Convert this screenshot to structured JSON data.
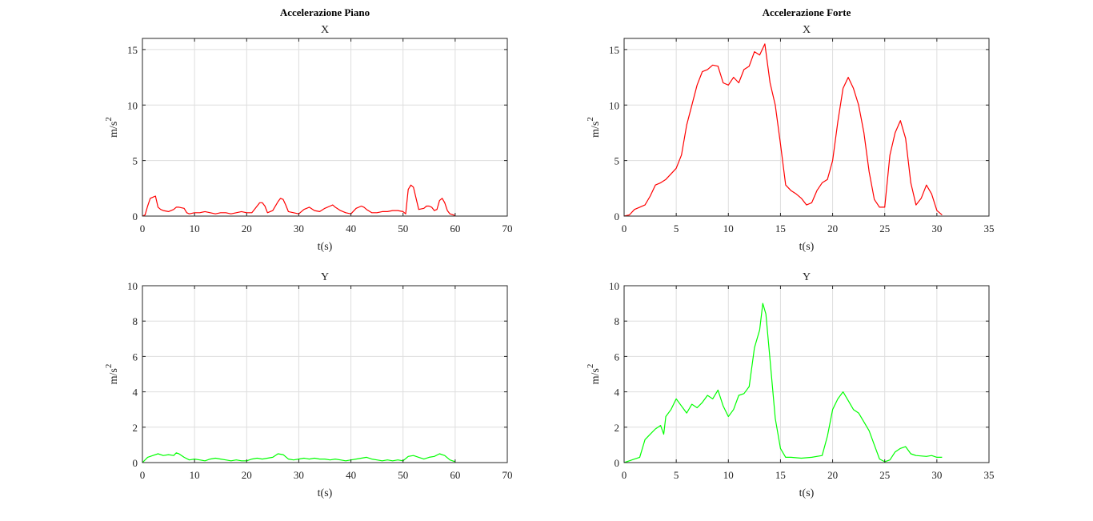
{
  "figure": {
    "left_title": "Accelerazione Piano",
    "right_title": "Accelerazione Forte"
  },
  "chart_data": [
    {
      "type": "line",
      "title": "X",
      "xlabel": "t(s)",
      "ylabel": "m/s^2",
      "xlim": [
        0,
        70
      ],
      "ylim": [
        0,
        16
      ],
      "xticks": [
        0,
        10,
        20,
        30,
        40,
        50,
        60,
        70
      ],
      "yticks": [
        0,
        5,
        10,
        15
      ],
      "grid": true,
      "series": [
        {
          "color": "#ff0000",
          "x": [
            0,
            0.5,
            1,
            1.5,
            2,
            2.5,
            3,
            3.5,
            4,
            5,
            6,
            6.5,
            7,
            8,
            8.5,
            9,
            10,
            11,
            12,
            13,
            14,
            15,
            16,
            17,
            18,
            19,
            20,
            21,
            22,
            22.5,
            23,
            23.5,
            24,
            25,
            26,
            26.5,
            27,
            27.5,
            28,
            29,
            30,
            31,
            32,
            33,
            34,
            35,
            36,
            36.5,
            37,
            38,
            39,
            40,
            41,
            42,
            42.5,
            43,
            44,
            45,
            46,
            47,
            48,
            49,
            50,
            50.5,
            51,
            51.5,
            52,
            52.5,
            53,
            54,
            54.5,
            55,
            55.5,
            56,
            56.5,
            57,
            57.5,
            58,
            58.5,
            59,
            60
          ],
          "y": [
            0,
            0.1,
            0.9,
            1.6,
            1.7,
            1.8,
            0.8,
            0.6,
            0.5,
            0.4,
            0.6,
            0.8,
            0.8,
            0.7,
            0.3,
            0.2,
            0.3,
            0.3,
            0.4,
            0.3,
            0.2,
            0.3,
            0.3,
            0.2,
            0.3,
            0.4,
            0.3,
            0.3,
            0.9,
            1.2,
            1.2,
            0.9,
            0.3,
            0.5,
            1.3,
            1.6,
            1.5,
            1.0,
            0.4,
            0.3,
            0.2,
            0.6,
            0.8,
            0.5,
            0.4,
            0.7,
            0.9,
            1.0,
            0.8,
            0.5,
            0.3,
            0.2,
            0.7,
            0.9,
            0.8,
            0.6,
            0.3,
            0.3,
            0.4,
            0.4,
            0.5,
            0.5,
            0.4,
            0.2,
            2.4,
            2.8,
            2.6,
            1.6,
            0.6,
            0.7,
            0.9,
            0.9,
            0.8,
            0.5,
            0.6,
            1.4,
            1.6,
            1.2,
            0.5,
            0.2,
            0.05
          ]
        }
      ]
    },
    {
      "type": "line",
      "title": "X",
      "xlabel": "t(s)",
      "ylabel": "m/s^2",
      "xlim": [
        0,
        35
      ],
      "ylim": [
        0,
        16
      ],
      "xticks": [
        0,
        5,
        10,
        15,
        20,
        25,
        30,
        35
      ],
      "yticks": [
        0,
        5,
        10,
        15
      ],
      "grid": true,
      "series": [
        {
          "color": "#ff0000",
          "x": [
            0,
            0.5,
            1,
            1.5,
            2,
            2.5,
            3,
            3.5,
            4,
            4.5,
            5,
            5.5,
            6,
            6.5,
            7,
            7.5,
            8,
            8.5,
            9,
            9.5,
            10,
            10.5,
            11,
            11.5,
            12,
            12.5,
            13,
            13.5,
            14,
            14.5,
            15,
            15.5,
            16,
            16.5,
            17,
            17.5,
            18,
            18.5,
            19,
            19.5,
            20,
            20.5,
            21,
            21.5,
            22,
            22.5,
            23,
            23.5,
            24,
            24.5,
            25,
            25.5,
            26,
            26.5,
            27,
            27.5,
            28,
            28.5,
            29,
            29.5,
            30,
            30.5
          ],
          "y": [
            0,
            0.1,
            0.6,
            0.8,
            1.0,
            1.8,
            2.8,
            3.0,
            3.3,
            3.8,
            4.3,
            5.5,
            8.2,
            10.0,
            11.8,
            13.0,
            13.2,
            13.6,
            13.5,
            12.0,
            11.8,
            12.5,
            12.0,
            13.2,
            13.5,
            14.8,
            14.5,
            15.5,
            12.0,
            10.0,
            6.5,
            2.8,
            2.3,
            2.0,
            1.6,
            1.0,
            1.2,
            2.3,
            3.0,
            3.3,
            5.0,
            8.5,
            11.5,
            12.5,
            11.5,
            10.0,
            7.5,
            4.0,
            1.5,
            0.8,
            0.8,
            5.5,
            7.5,
            8.6,
            7.0,
            3.0,
            1.0,
            1.6,
            2.8,
            2.0,
            0.5,
            0.1
          ]
        }
      ]
    },
    {
      "type": "line",
      "title": "Y",
      "xlabel": "t(s)",
      "ylabel": "m/s^2",
      "xlim": [
        0,
        70
      ],
      "ylim": [
        0,
        10
      ],
      "xticks": [
        0,
        10,
        20,
        30,
        40,
        50,
        60,
        70
      ],
      "yticks": [
        0,
        2,
        4,
        6,
        8,
        10
      ],
      "grid": true,
      "series": [
        {
          "color": "#00ff00",
          "x": [
            0,
            1,
            2,
            3,
            4,
            5,
            6,
            6.5,
            7,
            8,
            9,
            10,
            11,
            12,
            13,
            14,
            15,
            16,
            17,
            18,
            19,
            20,
            21,
            22,
            23,
            24,
            25,
            26,
            27,
            28,
            29,
            30,
            31,
            32,
            33,
            34,
            35,
            36,
            37,
            38,
            39,
            40,
            41,
            42,
            43,
            44,
            45,
            46,
            47,
            48,
            49,
            50,
            51,
            52,
            53,
            54,
            55,
            56,
            57,
            58,
            59,
            60
          ],
          "y": [
            0,
            0.3,
            0.4,
            0.5,
            0.4,
            0.45,
            0.4,
            0.55,
            0.5,
            0.3,
            0.15,
            0.2,
            0.15,
            0.1,
            0.2,
            0.25,
            0.2,
            0.15,
            0.1,
            0.15,
            0.1,
            0.1,
            0.2,
            0.25,
            0.2,
            0.25,
            0.3,
            0.5,
            0.45,
            0.2,
            0.15,
            0.2,
            0.25,
            0.2,
            0.25,
            0.2,
            0.2,
            0.15,
            0.2,
            0.15,
            0.1,
            0.15,
            0.2,
            0.25,
            0.3,
            0.2,
            0.15,
            0.1,
            0.15,
            0.1,
            0.15,
            0.1,
            0.35,
            0.4,
            0.3,
            0.2,
            0.3,
            0.35,
            0.5,
            0.4,
            0.15,
            0.05
          ]
        }
      ]
    },
    {
      "type": "line",
      "title": "Y",
      "xlabel": "t(s)",
      "ylabel": "m/s^2",
      "xlim": [
        0,
        35
      ],
      "ylim": [
        0,
        10
      ],
      "xticks": [
        0,
        5,
        10,
        15,
        20,
        25,
        30,
        35
      ],
      "yticks": [
        0,
        2,
        4,
        6,
        8,
        10
      ],
      "grid": true,
      "series": [
        {
          "color": "#00ff00",
          "x": [
            0,
            0.5,
            1,
            1.5,
            2,
            2.5,
            3,
            3.5,
            3.8,
            4,
            4.5,
            5,
            5.5,
            6,
            6.5,
            7,
            7.5,
            8,
            8.5,
            9,
            9.5,
            10,
            10.5,
            11,
            11.5,
            12,
            12.5,
            13,
            13.3,
            13.6,
            14,
            14.5,
            15,
            15.5,
            16,
            17,
            18,
            19,
            19.5,
            20,
            20.5,
            21,
            21.5,
            22,
            22.5,
            23,
            23.5,
            24,
            24.5,
            25,
            25.5,
            26,
            26.5,
            27,
            27.5,
            28,
            29,
            29.5,
            30,
            30.5
          ],
          "y": [
            0,
            0.1,
            0.2,
            0.3,
            1.3,
            1.6,
            1.9,
            2.1,
            1.6,
            2.6,
            3.0,
            3.6,
            3.2,
            2.8,
            3.3,
            3.1,
            3.4,
            3.8,
            3.6,
            4.1,
            3.2,
            2.6,
            3.0,
            3.8,
            3.9,
            4.3,
            6.5,
            7.5,
            9.0,
            8.4,
            5.8,
            2.5,
            0.8,
            0.3,
            0.3,
            0.25,
            0.3,
            0.4,
            1.5,
            3.0,
            3.6,
            4.0,
            3.5,
            3.0,
            2.8,
            2.3,
            1.8,
            1.0,
            0.2,
            0.05,
            0.15,
            0.6,
            0.8,
            0.9,
            0.5,
            0.4,
            0.35,
            0.4,
            0.3,
            0.3
          ]
        }
      ]
    }
  ]
}
